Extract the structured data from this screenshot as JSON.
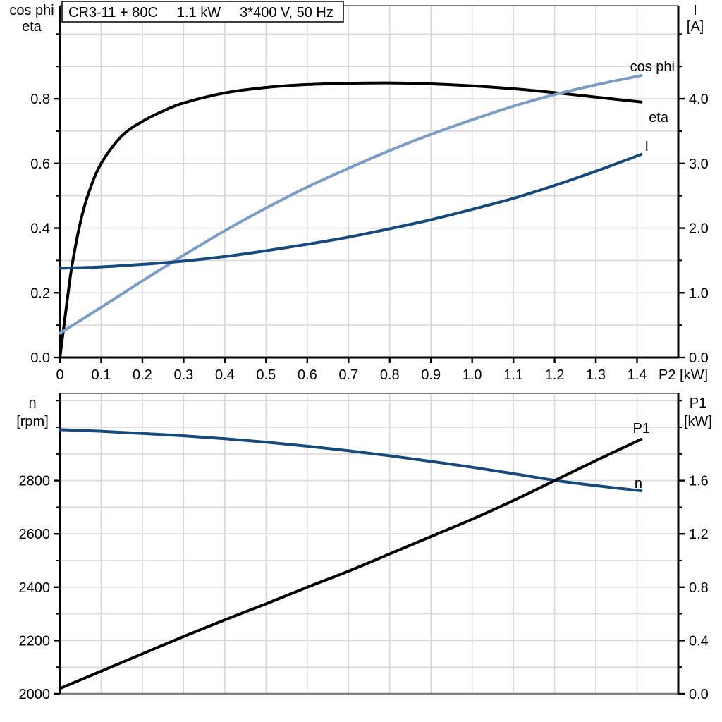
{
  "title_box": {
    "model": "CR3-11 + 80C",
    "power": "1.1 kW",
    "supply": "3*400 V, 50 Hz"
  },
  "colors": {
    "eta": "#000000",
    "p1": "#000000",
    "cos_phi": "#7b9cc4",
    "current": "#17497c",
    "speed": "#17497c",
    "grid": "#d8d8dc",
    "frame": "#7f7f7f",
    "axis": "#000000",
    "background": "#ffffff"
  },
  "chart_data": [
    {
      "type": "line",
      "title": "CR3-11 + 80C 1.1 kW 3*400 V, 50 Hz",
      "x_label": "P2 [kW]",
      "x_range": [
        0,
        1.5
      ],
      "x_grid_step": 0.1,
      "x_tick_labels": [
        "0",
        "0.1",
        "0.2",
        "0.3",
        "0.4",
        "0.5",
        "0.6",
        "0.7",
        "0.8",
        "0.9",
        "1.0",
        "1.1",
        "1.2",
        "1.3",
        "1.4"
      ],
      "grid": true,
      "legend_position": "curve-end-labels",
      "left_axis": {
        "label_line1": "cos phi",
        "label_line2": "eta",
        "range": [
          0,
          1.088
        ],
        "tick_labels": [
          "0.0",
          "0.2",
          "0.4",
          "0.6",
          "0.8"
        ],
        "minor_step": 0.1
      },
      "right_axis": {
        "label_line1": "I",
        "label_line2": "[A]",
        "range": [
          0,
          5.44
        ],
        "tick_labels": [
          "0.0",
          "1.0",
          "2.0",
          "3.0",
          "4.0"
        ],
        "minor_step": 0.5
      },
      "series": [
        {
          "name": "eta",
          "axis": "left",
          "color_key": "eta",
          "x": [
            0,
            0.01,
            0.02,
            0.03,
            0.05,
            0.07,
            0.1,
            0.15,
            0.2,
            0.25,
            0.3,
            0.4,
            0.5,
            0.6,
            0.7,
            0.8,
            0.9,
            1.0,
            1.1,
            1.2,
            1.3,
            1.41
          ],
          "values": [
            0,
            0.1,
            0.2,
            0.29,
            0.42,
            0.51,
            0.6,
            0.685,
            0.73,
            0.762,
            0.787,
            0.818,
            0.835,
            0.844,
            0.848,
            0.849,
            0.846,
            0.84,
            0.831,
            0.819,
            0.805,
            0.79
          ]
        },
        {
          "name": "cos phi",
          "axis": "left",
          "color_key": "cos_phi",
          "x": [
            0,
            0.05,
            0.1,
            0.15,
            0.2,
            0.3,
            0.4,
            0.5,
            0.6,
            0.7,
            0.8,
            0.9,
            1.0,
            1.1,
            1.2,
            1.3,
            1.41
          ],
          "values": [
            0.075,
            0.115,
            0.155,
            0.196,
            0.237,
            0.316,
            0.392,
            0.462,
            0.527,
            0.585,
            0.64,
            0.69,
            0.735,
            0.777,
            0.813,
            0.843,
            0.872
          ]
        },
        {
          "name": "I",
          "axis": "right",
          "color_key": "current",
          "x": [
            0,
            0.1,
            0.2,
            0.3,
            0.4,
            0.5,
            0.6,
            0.7,
            0.8,
            0.9,
            1.0,
            1.1,
            1.2,
            1.3,
            1.41
          ],
          "values": [
            1.38,
            1.4,
            1.44,
            1.49,
            1.56,
            1.65,
            1.75,
            1.86,
            1.99,
            2.13,
            2.29,
            2.46,
            2.66,
            2.88,
            3.14
          ]
        }
      ]
    },
    {
      "type": "line",
      "x_range": [
        0,
        1.5
      ],
      "x_grid_step": 0.1,
      "grid": true,
      "legend_position": "curve-end-labels",
      "left_axis": {
        "label_line1": "n",
        "label_line2": "[rpm]",
        "range": [
          2000,
          3127
        ],
        "tick_labels": [
          "2000",
          "2200",
          "2400",
          "2600",
          "2800"
        ],
        "minor_step": 100
      },
      "right_axis": {
        "label_line1": "P1",
        "label_line2": "[kW]",
        "range": [
          0,
          2.254
        ],
        "tick_labels": [
          "0.0",
          "0.4",
          "0.8",
          "1.2",
          "1.6"
        ],
        "minor_step": 0.2
      },
      "series": [
        {
          "name": "n",
          "axis": "left",
          "color_key": "speed",
          "x": [
            0,
            0.1,
            0.2,
            0.3,
            0.4,
            0.5,
            0.6,
            0.7,
            0.8,
            0.9,
            1.0,
            1.1,
            1.2,
            1.3,
            1.41
          ],
          "values": [
            2991,
            2985,
            2977,
            2968,
            2957,
            2944,
            2929,
            2912,
            2893,
            2872,
            2850,
            2826,
            2801,
            2781,
            2762
          ]
        },
        {
          "name": "P1",
          "axis": "right",
          "color_key": "p1",
          "x": [
            0,
            0.1,
            0.2,
            0.3,
            0.4,
            0.5,
            0.6,
            0.7,
            0.8,
            0.9,
            1.0,
            1.1,
            1.2,
            1.3,
            1.41
          ],
          "values": [
            0.04,
            0.17,
            0.3,
            0.43,
            0.555,
            0.675,
            0.8,
            0.92,
            1.05,
            1.18,
            1.31,
            1.45,
            1.6,
            1.75,
            1.91
          ]
        }
      ]
    }
  ]
}
